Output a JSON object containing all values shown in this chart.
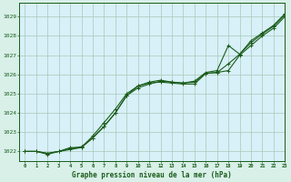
{
  "title": "Graphe pression niveau de la mer (hPa)",
  "background_color": "#d8f0e8",
  "plot_bg_color": "#d8f0f8",
  "grid_color": "#a8c8b8",
  "line_color": "#1a5c1a",
  "xlim": [
    -0.5,
    23
  ],
  "ylim": [
    1021.5,
    1029.7
  ],
  "yticks": [
    1022,
    1023,
    1024,
    1025,
    1026,
    1027,
    1028,
    1029
  ],
  "xticks": [
    0,
    1,
    2,
    3,
    4,
    5,
    6,
    7,
    8,
    9,
    10,
    11,
    12,
    13,
    14,
    15,
    16,
    17,
    18,
    19,
    20,
    21,
    22,
    23
  ],
  "series1": [
    1022.0,
    1022.0,
    1021.9,
    1022.0,
    1022.2,
    1022.2,
    1022.8,
    1023.5,
    1024.2,
    1025.0,
    1025.4,
    1025.55,
    1025.6,
    1025.55,
    1025.5,
    1025.5,
    1026.05,
    1026.1,
    1026.2,
    1027.0,
    1027.5,
    1028.0,
    1028.4,
    1029.0
  ],
  "series2": [
    1022.0,
    1022.0,
    1021.9,
    1022.0,
    1022.1,
    1022.2,
    1022.7,
    1023.3,
    1024.0,
    1024.9,
    1025.3,
    1025.5,
    1025.65,
    1025.6,
    1025.55,
    1025.6,
    1026.05,
    1026.1,
    1026.55,
    1027.05,
    1027.65,
    1028.1,
    1028.5,
    1029.1
  ],
  "series3": [
    1022.0,
    1022.0,
    1021.85,
    1022.0,
    1022.15,
    1022.25,
    1022.7,
    1023.3,
    1024.0,
    1024.9,
    1025.4,
    1025.6,
    1025.7,
    1025.6,
    1025.55,
    1025.65,
    1026.1,
    1026.2,
    1027.5,
    1027.05,
    1027.75,
    1028.15,
    1028.55,
    1029.15
  ],
  "ylabel_fontsize": 5.0,
  "xlabel_fontsize": 5.0,
  "title_fontsize": 5.5,
  "linewidth": 0.8,
  "markersize": 2.5
}
